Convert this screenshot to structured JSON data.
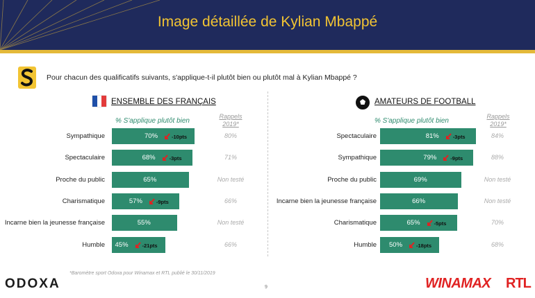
{
  "header": {
    "title": "Image détaillée de Kylian Mbappé"
  },
  "question": "Pour chacun des qualificatifs suivants, s'applique-t-il plutôt bien ou plutôt mal à Kylian Mbappé ?",
  "colors": {
    "bar": "#2e8b6e",
    "arrow": "#e02222",
    "header": "#1f2a5c",
    "gold": "#e4b93a",
    "flag_blue": "#1f4fa8",
    "flag_red": "#e23b3b"
  },
  "icons": {
    "logo": "odoxa-s-logo",
    "flag": "france-flag-icon",
    "ball": "soccer-ball-icon",
    "arrow": "down-arrow-icon"
  },
  "chart_data": [
    {
      "type": "bar",
      "title": "ENSEMBLE DES FRANÇAIS",
      "value_header": "% S'applique plutôt bien",
      "rappel_header": [
        "Rappels",
        "2019*"
      ],
      "categories": [
        "Sympathique",
        "Spectaculaire",
        "Proche du public",
        "Charismatique",
        "Incarne bien la jeunesse française",
        "Humble"
      ],
      "values": [
        70,
        68,
        65,
        57,
        55,
        45
      ],
      "labels": [
        "70%",
        "68%",
        "65%",
        "57%",
        "55%",
        "45%"
      ],
      "deltas": [
        "-10pts",
        "-3pts",
        "",
        "-9pts",
        "",
        "-21pts"
      ],
      "rappels": [
        "80%",
        "71%",
        "Non testé",
        "66%",
        "Non testé",
        "66%"
      ]
    },
    {
      "type": "bar",
      "title": "AMATEURS DE FOOTBALL",
      "value_header": "% S'applique plutôt bien",
      "rappel_header": [
        "Rappels",
        "2019*"
      ],
      "categories": [
        "Spectaculaire",
        "Sympathique",
        "Proche du public",
        "Incarne bien la jeunesse française",
        "Charismatique",
        "Humble"
      ],
      "values": [
        81,
        79,
        69,
        66,
        65,
        50
      ],
      "labels": [
        "81%",
        "79%",
        "69%",
        "66%",
        "65%",
        "50%"
      ],
      "deltas": [
        "-3pts",
        "-9pts",
        "",
        "",
        "-5pts",
        "-18pts"
      ],
      "rappels": [
        "84%",
        "88%",
        "Non testé",
        "Non testé",
        "70%",
        "68%"
      ]
    }
  ],
  "footer": {
    "note": "*Baromètre sport Odoxa pour Winamax et RTL publié le 30/11/2019",
    "page": "9",
    "odoxa": "ODOXA",
    "winamax": "WINAMAX",
    "rtl": "RTL"
  }
}
